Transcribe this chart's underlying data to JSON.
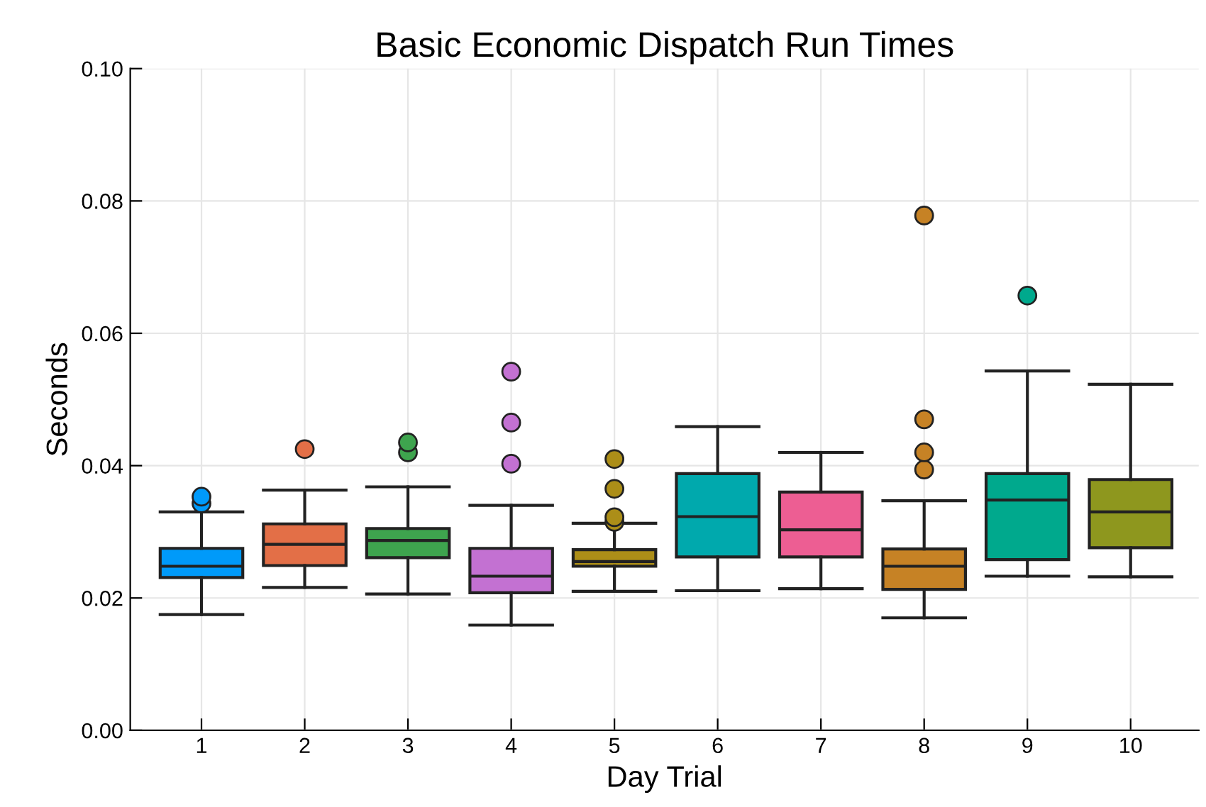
{
  "chart_data": {
    "type": "box",
    "title": "Basic Economic Dispatch Run Times",
    "xlabel": "Day Trial",
    "ylabel": "Seconds",
    "categories": [
      "1",
      "2",
      "3",
      "4",
      "5",
      "6",
      "7",
      "8",
      "9",
      "10"
    ],
    "colors": [
      "#009afa",
      "#e36f47",
      "#3ea44e",
      "#c371d2",
      "#ac8e18",
      "#00a9ad",
      "#ed5e93",
      "#c68225",
      "#00a98d",
      "#8e971e"
    ],
    "boxes": [
      {
        "low": 0.0175,
        "q1": 0.0231,
        "median": 0.0248,
        "q3": 0.0275,
        "high": 0.033,
        "outliers": [
          0.0343,
          0.0353
        ]
      },
      {
        "low": 0.0216,
        "q1": 0.0249,
        "median": 0.0281,
        "q3": 0.0312,
        "high": 0.0363,
        "outliers": [
          0.0425
        ]
      },
      {
        "low": 0.0206,
        "q1": 0.0261,
        "median": 0.0287,
        "q3": 0.0305,
        "high": 0.0368,
        "outliers": [
          0.042,
          0.0435
        ]
      },
      {
        "low": 0.0159,
        "q1": 0.0208,
        "median": 0.0233,
        "q3": 0.0275,
        "high": 0.034,
        "outliers": [
          0.0403,
          0.0465,
          0.0542
        ]
      },
      {
        "low": 0.021,
        "q1": 0.0248,
        "median": 0.0255,
        "q3": 0.0273,
        "high": 0.0313,
        "outliers": [
          0.0315,
          0.0322,
          0.0365,
          0.041
        ]
      },
      {
        "low": 0.0211,
        "q1": 0.0262,
        "median": 0.0323,
        "q3": 0.0388,
        "high": 0.0459
      },
      {
        "low": 0.0214,
        "q1": 0.0262,
        "median": 0.0303,
        "q3": 0.036,
        "high": 0.042
      },
      {
        "low": 0.017,
        "q1": 0.0213,
        "median": 0.0248,
        "q3": 0.0274,
        "high": 0.0347,
        "outliers": [
          0.0394,
          0.042,
          0.047,
          0.0778
        ]
      },
      {
        "low": 0.0233,
        "q1": 0.0258,
        "median": 0.0348,
        "q3": 0.0388,
        "high": 0.0543,
        "outliers": [
          0.0657
        ]
      },
      {
        "low": 0.0232,
        "q1": 0.0276,
        "median": 0.033,
        "q3": 0.0379,
        "high": 0.0523
      }
    ],
    "ylim": [
      0.0,
      0.1
    ],
    "yticks": [
      {
        "value": 0.0,
        "label": "0.00"
      },
      {
        "value": 0.02,
        "label": "0.02"
      },
      {
        "value": 0.04,
        "label": "0.04"
      },
      {
        "value": 0.06,
        "label": "0.06"
      },
      {
        "value": 0.08,
        "label": "0.08"
      },
      {
        "value": 0.1,
        "label": "0.10"
      }
    ],
    "grid": true,
    "legend": false
  }
}
